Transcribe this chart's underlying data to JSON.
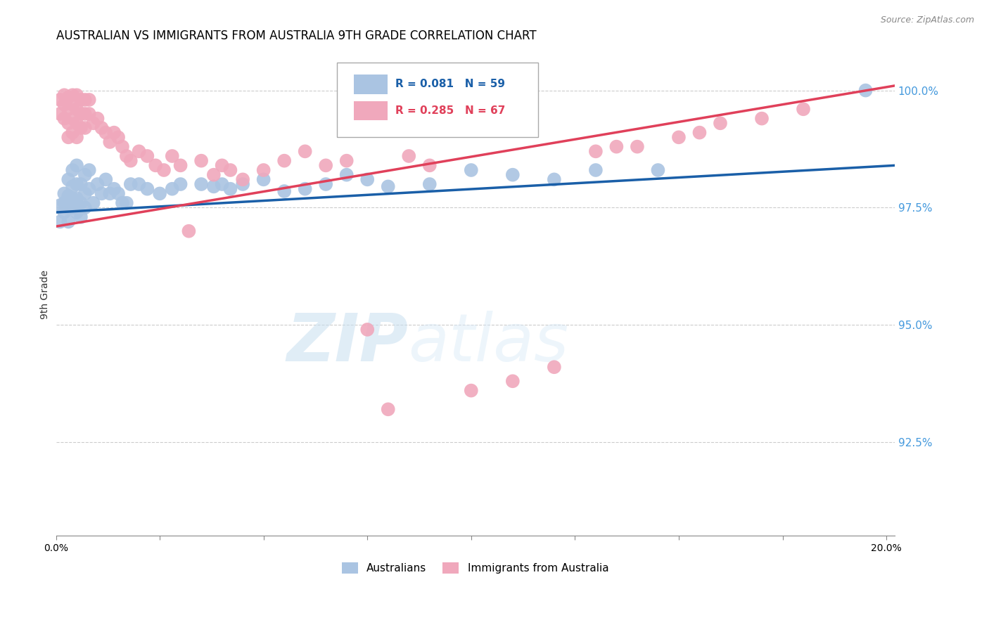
{
  "title": "AUSTRALIAN VS IMMIGRANTS FROM AUSTRALIA 9TH GRADE CORRELATION CHART",
  "source": "Source: ZipAtlas.com",
  "ylabel": "9th Grade",
  "right_yticks": [
    "100.0%",
    "97.5%",
    "95.0%",
    "92.5%"
  ],
  "right_ytick_vals": [
    1.0,
    0.975,
    0.95,
    0.925
  ],
  "legend_blue_r": "R = 0.081",
  "legend_blue_n": "N = 59",
  "legend_pink_r": "R = 0.285",
  "legend_pink_n": "N = 67",
  "legend_label_blue": "Australians",
  "legend_label_pink": "Immigrants from Australia",
  "blue_color": "#aac4e2",
  "pink_color": "#f0a8bc",
  "blue_line_color": "#1a5fa8",
  "pink_line_color": "#e0405a",
  "blue_legend_text_color": "#1a5fa8",
  "pink_legend_text_color": "#e0405a",
  "right_axis_color": "#4499dd",
  "watermark_zip": "ZIP",
  "watermark_atlas": "atlas",
  "blue_points": [
    [
      0.001,
      0.9755
    ],
    [
      0.001,
      0.972
    ],
    [
      0.002,
      0.978
    ],
    [
      0.002,
      0.976
    ],
    [
      0.002,
      0.974
    ],
    [
      0.003,
      0.981
    ],
    [
      0.003,
      0.9775
    ],
    [
      0.003,
      0.975
    ],
    [
      0.003,
      0.972
    ],
    [
      0.004,
      0.983
    ],
    [
      0.004,
      0.9795
    ],
    [
      0.004,
      0.977
    ],
    [
      0.004,
      0.975
    ],
    [
      0.005,
      0.984
    ],
    [
      0.005,
      0.98
    ],
    [
      0.005,
      0.977
    ],
    [
      0.005,
      0.974
    ],
    [
      0.006,
      0.98
    ],
    [
      0.006,
      0.976
    ],
    [
      0.006,
      0.973
    ],
    [
      0.007,
      0.982
    ],
    [
      0.007,
      0.978
    ],
    [
      0.007,
      0.975
    ],
    [
      0.008,
      0.983
    ],
    [
      0.008,
      0.979
    ],
    [
      0.009,
      0.976
    ],
    [
      0.01,
      0.98
    ],
    [
      0.011,
      0.978
    ],
    [
      0.012,
      0.981
    ],
    [
      0.013,
      0.978
    ],
    [
      0.014,
      0.979
    ],
    [
      0.015,
      0.978
    ],
    [
      0.016,
      0.976
    ],
    [
      0.017,
      0.976
    ],
    [
      0.018,
      0.98
    ],
    [
      0.02,
      0.98
    ],
    [
      0.022,
      0.979
    ],
    [
      0.025,
      0.978
    ],
    [
      0.028,
      0.979
    ],
    [
      0.03,
      0.98
    ],
    [
      0.035,
      0.98
    ],
    [
      0.038,
      0.9795
    ],
    [
      0.04,
      0.98
    ],
    [
      0.042,
      0.979
    ],
    [
      0.045,
      0.98
    ],
    [
      0.05,
      0.981
    ],
    [
      0.055,
      0.9785
    ],
    [
      0.06,
      0.979
    ],
    [
      0.065,
      0.98
    ],
    [
      0.07,
      0.982
    ],
    [
      0.075,
      0.981
    ],
    [
      0.08,
      0.9795
    ],
    [
      0.09,
      0.98
    ],
    [
      0.1,
      0.983
    ],
    [
      0.11,
      0.982
    ],
    [
      0.12,
      0.981
    ],
    [
      0.13,
      0.983
    ],
    [
      0.145,
      0.983
    ],
    [
      0.195,
      1.0
    ]
  ],
  "pink_points": [
    [
      0.001,
      0.998
    ],
    [
      0.001,
      0.995
    ],
    [
      0.002,
      0.999
    ],
    [
      0.002,
      0.997
    ],
    [
      0.002,
      0.994
    ],
    [
      0.003,
      0.9985
    ],
    [
      0.003,
      0.996
    ],
    [
      0.003,
      0.993
    ],
    [
      0.003,
      0.99
    ],
    [
      0.004,
      0.999
    ],
    [
      0.004,
      0.997
    ],
    [
      0.004,
      0.994
    ],
    [
      0.004,
      0.991
    ],
    [
      0.005,
      0.999
    ],
    [
      0.005,
      0.996
    ],
    [
      0.005,
      0.993
    ],
    [
      0.005,
      0.99
    ],
    [
      0.006,
      0.998
    ],
    [
      0.006,
      0.995
    ],
    [
      0.006,
      0.992
    ],
    [
      0.007,
      0.998
    ],
    [
      0.007,
      0.995
    ],
    [
      0.007,
      0.992
    ],
    [
      0.008,
      0.998
    ],
    [
      0.008,
      0.995
    ],
    [
      0.009,
      0.993
    ],
    [
      0.01,
      0.994
    ],
    [
      0.011,
      0.992
    ],
    [
      0.012,
      0.991
    ],
    [
      0.013,
      0.989
    ],
    [
      0.014,
      0.991
    ],
    [
      0.015,
      0.99
    ],
    [
      0.016,
      0.988
    ],
    [
      0.017,
      0.986
    ],
    [
      0.018,
      0.985
    ],
    [
      0.02,
      0.987
    ],
    [
      0.022,
      0.986
    ],
    [
      0.024,
      0.984
    ],
    [
      0.026,
      0.983
    ],
    [
      0.028,
      0.986
    ],
    [
      0.03,
      0.984
    ],
    [
      0.032,
      0.97
    ],
    [
      0.035,
      0.985
    ],
    [
      0.038,
      0.982
    ],
    [
      0.04,
      0.984
    ],
    [
      0.042,
      0.983
    ],
    [
      0.045,
      0.981
    ],
    [
      0.05,
      0.983
    ],
    [
      0.055,
      0.985
    ],
    [
      0.06,
      0.987
    ],
    [
      0.065,
      0.984
    ],
    [
      0.07,
      0.985
    ],
    [
      0.075,
      0.949
    ],
    [
      0.08,
      0.932
    ],
    [
      0.085,
      0.986
    ],
    [
      0.09,
      0.984
    ],
    [
      0.1,
      0.936
    ],
    [
      0.11,
      0.938
    ],
    [
      0.12,
      0.941
    ],
    [
      0.13,
      0.987
    ],
    [
      0.135,
      0.988
    ],
    [
      0.14,
      0.988
    ],
    [
      0.15,
      0.99
    ],
    [
      0.155,
      0.991
    ],
    [
      0.16,
      0.993
    ],
    [
      0.17,
      0.994
    ],
    [
      0.18,
      0.996
    ]
  ],
  "xlim": [
    0.0,
    0.202
  ],
  "ylim": [
    0.905,
    1.008
  ],
  "blue_line_x": [
    0.0,
    0.202
  ],
  "blue_line_y": [
    0.974,
    0.984
  ],
  "pink_line_x": [
    0.0,
    0.202
  ],
  "pink_line_y": [
    0.971,
    1.001
  ],
  "xtick_positions": [
    0.0,
    0.025,
    0.05,
    0.075,
    0.1,
    0.125,
    0.15,
    0.175,
    0.2
  ],
  "xtick_show_labels": [
    true,
    false,
    false,
    false,
    false,
    false,
    false,
    false,
    true
  ],
  "ytick_positions": [
    0.925,
    0.95,
    0.975,
    1.0
  ]
}
